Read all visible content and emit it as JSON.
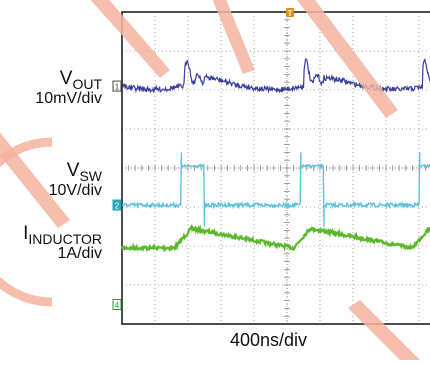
{
  "chart_data": {
    "type": "line",
    "title": "",
    "xlabel": "400ns/div",
    "horizontal_divisions": 10,
    "vertical_divisions": 8,
    "grid": true,
    "trigger_marker": "T",
    "channels": [
      {
        "id": "1",
        "marker_label": "1",
        "name_main": "V",
        "name_sub": "OUT",
        "scale": "10mV/div",
        "color": "#3a3f9a",
        "shape": "ripple with spike at switching edge",
        "edge_times_div": [
          1.9,
          5.5,
          9.1
        ],
        "baseline_div": 1.9,
        "spike_amplitude_div": 0.75
      },
      {
        "id": "2",
        "marker_label": "2",
        "name_main": "V",
        "name_sub": "SW",
        "scale": "10V/div",
        "color": "#5cc3dd",
        "shape": "pulse",
        "pulse_high_div": 3.95,
        "pulse_low_div": 4.95,
        "pulse_windows_div": [
          [
            1.8,
            2.5
          ],
          [
            5.4,
            6.1
          ],
          [
            9.0,
            9.7
          ]
        ]
      },
      {
        "id": "3",
        "marker_label": "",
        "name_main": "I",
        "name_sub": "INDUCTOR",
        "scale": "1A/div",
        "color": "#5cb82c",
        "shape": "triangle",
        "peak_times_div": [
          2.1,
          5.7,
          9.3
        ],
        "trough_times_div": [
          0.0,
          1.6,
          5.2,
          8.8
        ],
        "peak_level_div": 5.55,
        "trough_level_div": 6.05
      },
      {
        "id": "4",
        "marker_label": "4",
        "name_main": "",
        "name_sub": "",
        "scale": "",
        "color": "#2e9a3a"
      }
    ],
    "colors": {
      "grid": "#8a8a8a",
      "frame": "#222222",
      "trigger": "#e88a1a",
      "overlay": "#f4b39e"
    }
  }
}
